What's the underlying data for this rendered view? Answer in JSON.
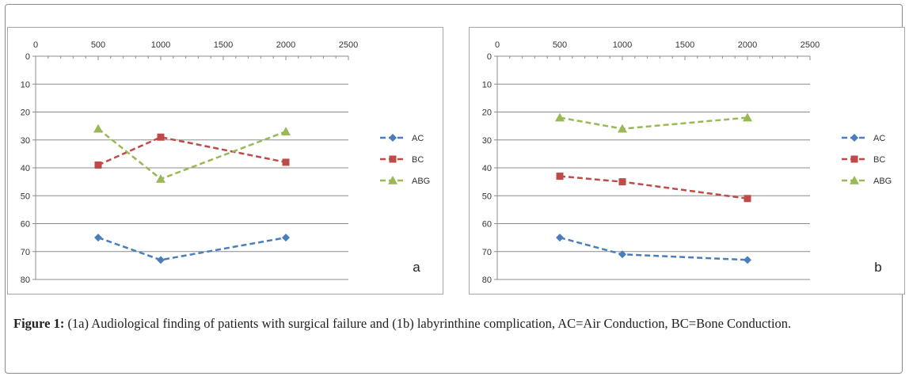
{
  "figure": {
    "caption_label": "Figure 1:",
    "caption_text": "(1a) Audiological finding of patients with surgical failure and (1b) labyrinthine complication, AC=Air Conduction, BC=Bone Conduction."
  },
  "colors": {
    "AC": "#4a7ebb",
    "BC": "#be4b48",
    "ABG": "#98b954",
    "grid": "#8c8c8c",
    "axis": "#8c8c8c"
  },
  "chart_data": [
    {
      "type": "line",
      "panel_label": "a",
      "x": [
        500,
        1000,
        2000
      ],
      "xlim": [
        0,
        2500
      ],
      "xticks": [
        0,
        500,
        1000,
        1500,
        2000,
        2500
      ],
      "ylim": [
        0,
        80
      ],
      "yticks": [
        0,
        10,
        20,
        30,
        40,
        50,
        60,
        70,
        80
      ],
      "y_inverted": true,
      "grid": true,
      "legend_position": "right",
      "series": [
        {
          "name": "AC",
          "marker": "diamond",
          "values": [
            65,
            73,
            65
          ]
        },
        {
          "name": "BC",
          "marker": "square",
          "values": [
            39,
            29,
            38
          ]
        },
        {
          "name": "ABG",
          "marker": "triangle",
          "values": [
            26,
            44,
            27
          ]
        }
      ]
    },
    {
      "type": "line",
      "panel_label": "b",
      "x": [
        500,
        1000,
        2000
      ],
      "xlim": [
        0,
        2500
      ],
      "xticks": [
        0,
        500,
        1000,
        1500,
        2000,
        2500
      ],
      "ylim": [
        0,
        80
      ],
      "yticks": [
        0,
        10,
        20,
        30,
        40,
        50,
        60,
        70,
        80
      ],
      "y_inverted": true,
      "grid": true,
      "legend_position": "right",
      "series": [
        {
          "name": "AC",
          "marker": "diamond",
          "values": [
            65,
            71,
            73
          ]
        },
        {
          "name": "BC",
          "marker": "square",
          "values": [
            43,
            45,
            51
          ]
        },
        {
          "name": "ABG",
          "marker": "triangle",
          "values": [
            22,
            26,
            22
          ]
        }
      ]
    }
  ]
}
